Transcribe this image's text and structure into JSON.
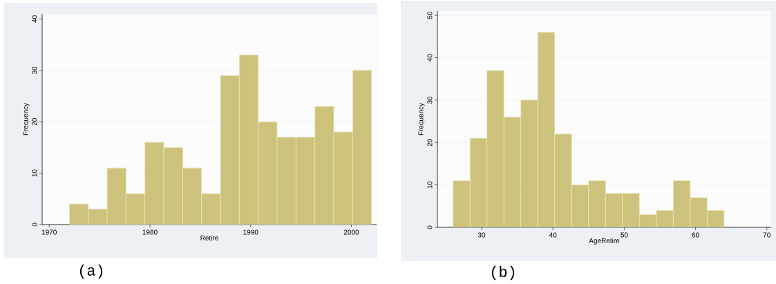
{
  "chart_data": [
    {
      "type": "histogram",
      "xlabel": "Retire",
      "ylabel": "Frequency",
      "color": "#cdc37c",
      "bins": [
        1972,
        1973.875,
        1975.75,
        1977.625,
        1979.5,
        1981.375,
        1983.25,
        1985.125,
        1987,
        1988.875,
        1990.75,
        1992.625,
        1994.5,
        1996.375,
        1998.25,
        2000.125,
        2002
      ],
      "values": [
        4,
        3,
        11,
        6,
        16,
        15,
        11,
        6,
        29,
        33,
        20,
        17,
        17,
        23,
        18,
        30
      ],
      "xlim": [
        1969.3,
        2002.5
      ],
      "ylim": [
        0,
        41
      ],
      "xticks": [
        1970,
        1980,
        1990,
        2000
      ],
      "yticks": [
        0,
        10,
        20,
        30,
        40
      ],
      "grid": "y",
      "annotations": [
        "(a)"
      ]
    },
    {
      "type": "histogram",
      "xlabel": "AgeRetire",
      "ylabel": "Frequency",
      "color": "#cdc37c",
      "bins": [
        26,
        28.375,
        30.75,
        33.125,
        35.5,
        37.875,
        40.25,
        42.625,
        45,
        47.375,
        49.75,
        52.125,
        54.5,
        56.875,
        59.25,
        61.625,
        64
      ],
      "values": [
        11,
        21,
        37,
        26,
        30,
        46,
        22,
        10,
        11,
        8,
        8,
        3,
        4,
        11,
        7,
        4
      ],
      "xlim": [
        23.8,
        70.6
      ],
      "ylim": [
        0,
        51
      ],
      "xticks": [
        30,
        40,
        50,
        60,
        70
      ],
      "yticks": [
        0,
        10,
        20,
        30,
        40,
        50
      ],
      "grid": "y",
      "annotations": [
        "(b)"
      ]
    }
  ]
}
